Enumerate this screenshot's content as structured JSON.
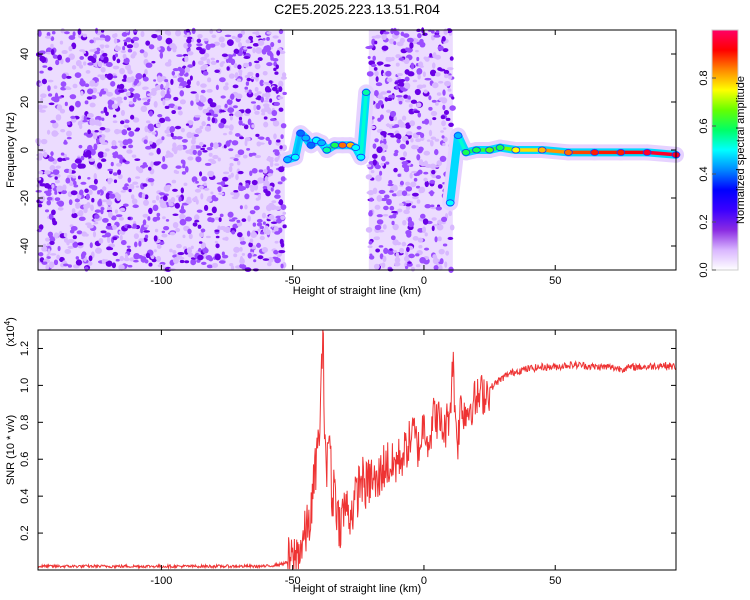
{
  "title": "C2E5.2025.223.13.51.R04",
  "chart_data": [
    {
      "type": "heatmap",
      "xlabel": "Height of straight line (km)",
      "ylabel": "Frequency (Hz)",
      "xlim": [
        -147,
        96
      ],
      "ylim": [
        -50,
        50
      ],
      "xticks": [
        -100,
        -50,
        0,
        50
      ],
      "yticks": [
        -40,
        -20,
        0,
        20,
        40
      ],
      "colorbar": {
        "label": "Normalized spectral amplitude",
        "range": [
          0,
          1
        ],
        "ticks": [
          "0.0",
          "0.2",
          "0.4",
          "0.6",
          "0.8"
        ],
        "colors": [
          "#ffffff",
          "#d9b6ff",
          "#8a2be2",
          "#3b00ff",
          "#0000ff",
          "#0088ff",
          "#00ffff",
          "#00ff66",
          "#66ff00",
          "#ffff00",
          "#ff8800",
          "#ff0000",
          "#ff0066"
        ]
      },
      "noise_regions": [
        [
          -147,
          -53
        ],
        [
          -21,
          11
        ]
      ],
      "signal_track": [
        {
          "x": -52,
          "y": -4,
          "a": 0.45
        },
        {
          "x": -49,
          "y": -3,
          "a": 0.5
        },
        {
          "x": -47,
          "y": 7,
          "a": 0.4
        },
        {
          "x": -45,
          "y": 5,
          "a": 0.45
        },
        {
          "x": -43,
          "y": 2,
          "a": 0.4
        },
        {
          "x": -41,
          "y": 4,
          "a": 0.5
        },
        {
          "x": -39,
          "y": 3,
          "a": 0.45
        },
        {
          "x": -37,
          "y": 0,
          "a": 0.55
        },
        {
          "x": -34,
          "y": 2,
          "a": 0.6
        },
        {
          "x": -31,
          "y": 2,
          "a": 0.85
        },
        {
          "x": -28,
          "y": 2,
          "a": 0.8
        },
        {
          "x": -26,
          "y": 1,
          "a": 0.5
        },
        {
          "x": -24,
          "y": -3,
          "a": 0.5
        },
        {
          "x": -22,
          "y": 24,
          "a": 0.55
        },
        {
          "x": 10,
          "y": -22,
          "a": 0.5
        },
        {
          "x": 13,
          "y": 6,
          "a": 0.45
        },
        {
          "x": 16,
          "y": -1,
          "a": 0.6
        },
        {
          "x": 20,
          "y": 0,
          "a": 0.6
        },
        {
          "x": 25,
          "y": 0,
          "a": 0.65
        },
        {
          "x": 29,
          "y": 1,
          "a": 0.6
        },
        {
          "x": 35,
          "y": 0,
          "a": 0.75
        },
        {
          "x": 45,
          "y": 0,
          "a": 0.8
        },
        {
          "x": 55,
          "y": -1,
          "a": 0.85
        },
        {
          "x": 65,
          "y": -1,
          "a": 0.9
        },
        {
          "x": 75,
          "y": -1,
          "a": 0.9
        },
        {
          "x": 85,
          "y": -1,
          "a": 0.95
        },
        {
          "x": 96,
          "y": -2,
          "a": 0.95
        }
      ]
    },
    {
      "type": "line",
      "xlabel": "Height of straight line (km)",
      "ylabel": "SNR (10 * v/v)",
      "yscale_label": "(x10",
      "yscale_exp": "4",
      "yscale_close": ")",
      "xlim": [
        -147,
        96
      ],
      "ylim": [
        0,
        1.3
      ],
      "xticks": [
        -100,
        -50,
        0,
        50
      ],
      "yticks": [
        0.2,
        0.4,
        0.6,
        0.8,
        1.0,
        1.2
      ],
      "ytick_labels": [
        "0.2",
        "0.4",
        "0.6",
        "0.8",
        "1.0",
        "1.2"
      ],
      "color": "#ee3333",
      "series": [
        {
          "x": [
            -147,
            -120,
            -100,
            -80,
            -60,
            -55,
            -50,
            -47,
            -45,
            -43,
            -41,
            -40,
            -39,
            -38.5,
            -38,
            -37,
            -36,
            -35,
            -34,
            -33,
            -32,
            -30,
            -28,
            -26,
            -24,
            -22,
            -20,
            -18,
            -16,
            -14,
            -12,
            -10,
            -8,
            -6,
            -4,
            -2,
            0,
            2,
            4,
            6,
            8,
            10,
            11,
            12,
            13,
            14,
            16,
            18,
            20,
            22,
            25,
            28,
            32,
            36,
            40,
            45,
            50,
            55,
            60,
            65,
            70,
            75,
            80,
            85,
            90,
            96
          ],
          "values": [
            0.02,
            0.02,
            0.02,
            0.02,
            0.02,
            0.03,
            0.05,
            0.12,
            0.2,
            0.3,
            0.6,
            0.7,
            1.05,
            1.3,
            0.9,
            0.5,
            0.8,
            0.35,
            0.5,
            0.3,
            0.25,
            0.35,
            0.3,
            0.38,
            0.5,
            0.45,
            0.5,
            0.45,
            0.55,
            0.58,
            0.55,
            0.6,
            0.62,
            0.68,
            0.75,
            0.65,
            0.8,
            0.7,
            0.85,
            0.8,
            0.75,
            0.88,
            1.15,
            0.82,
            0.7,
            0.9,
            0.85,
            0.9,
            0.92,
            0.95,
            0.98,
            1.02,
            1.06,
            1.08,
            1.09,
            1.1,
            1.1,
            1.11,
            1.11,
            1.1,
            1.1,
            1.09,
            1.1,
            1.1,
            1.11,
            1.1
          ]
        }
      ]
    }
  ]
}
